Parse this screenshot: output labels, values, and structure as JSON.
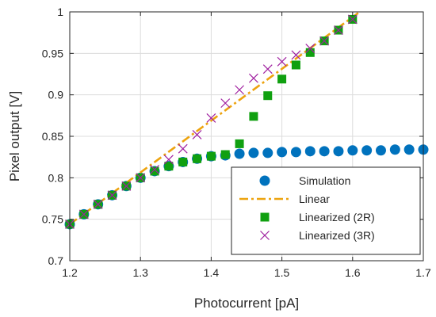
{
  "chart_data": {
    "type": "scatter",
    "xlabel": "Photocurrent [pA]",
    "ylabel": "Pixel output [V]",
    "xlim": [
      1.2,
      1.7
    ],
    "ylim": [
      0.7,
      1.0
    ],
    "xticks": [
      1.2,
      1.3,
      1.4,
      1.5,
      1.6,
      1.7
    ],
    "xtick_labels": [
      "1.2",
      "1.3",
      "1.4",
      "1.5",
      "1.6",
      "1.7"
    ],
    "yticks": [
      0.7,
      0.75,
      0.8,
      0.85,
      0.9,
      0.95,
      1.0
    ],
    "ytick_labels": [
      "0.7",
      "0.75",
      "0.8",
      "0.85",
      "0.9",
      "0.95",
      "1"
    ],
    "grid": true,
    "legend_position": "bottom-right",
    "series": [
      {
        "name": "Simulation",
        "marker": "circle",
        "color": "#0072BD",
        "x": [
          1.2,
          1.22,
          1.24,
          1.26,
          1.28,
          1.3,
          1.32,
          1.34,
          1.36,
          1.38,
          1.4,
          1.42,
          1.44,
          1.46,
          1.48,
          1.5,
          1.52,
          1.54,
          1.56,
          1.58,
          1.6,
          1.62,
          1.64,
          1.66,
          1.68,
          1.7
        ],
        "y": [
          0.744,
          0.756,
          0.768,
          0.779,
          0.79,
          0.8,
          0.808,
          0.814,
          0.819,
          0.823,
          0.826,
          0.827,
          0.829,
          0.83,
          0.83,
          0.831,
          0.831,
          0.832,
          0.832,
          0.832,
          0.833,
          0.833,
          0.833,
          0.834,
          0.834,
          0.834
        ]
      },
      {
        "name": "Linear",
        "marker": "dash-dot line",
        "color": "#EDA30E",
        "x": [
          1.2,
          1.61
        ],
        "y": [
          0.744,
          1.0
        ]
      },
      {
        "name": "Linearized (2R)",
        "marker": "square",
        "color": "#10A010",
        "x": [
          1.2,
          1.22,
          1.24,
          1.26,
          1.28,
          1.3,
          1.32,
          1.34,
          1.36,
          1.38,
          1.4,
          1.42,
          1.44,
          1.46,
          1.48,
          1.5,
          1.52,
          1.54,
          1.56,
          1.58,
          1.6
        ],
        "y": [
          0.744,
          0.756,
          0.768,
          0.779,
          0.79,
          0.8,
          0.808,
          0.814,
          0.819,
          0.823,
          0.826,
          0.828,
          0.841,
          0.874,
          0.899,
          0.919,
          0.936,
          0.951,
          0.965,
          0.978,
          0.991
        ]
      },
      {
        "name": "Linearized (3R)",
        "marker": "x",
        "color": "#A020A0",
        "x": [
          1.2,
          1.22,
          1.24,
          1.26,
          1.28,
          1.3,
          1.32,
          1.34,
          1.36,
          1.38,
          1.4,
          1.42,
          1.44,
          1.46,
          1.48,
          1.5,
          1.52,
          1.54,
          1.56,
          1.58,
          1.6
        ],
        "y": [
          0.744,
          0.756,
          0.768,
          0.779,
          0.79,
          0.8,
          0.81,
          0.822,
          0.835,
          0.852,
          0.872,
          0.89,
          0.906,
          0.92,
          0.931,
          0.94,
          0.948,
          0.956,
          0.965,
          0.978,
          0.991
        ]
      }
    ]
  }
}
